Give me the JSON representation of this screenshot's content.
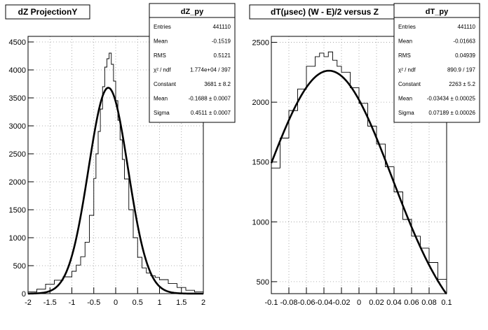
{
  "chart_data": [
    {
      "type": "line",
      "title": "dZ ProjectionY",
      "xlim": [
        -2,
        2
      ],
      "ylim": [
        0,
        4600
      ],
      "x_ticks": [
        "-2",
        "-1.5",
        "-1",
        "-0.5",
        "0",
        "0.5",
        "1",
        "1.5",
        "2"
      ],
      "x_tick_values": [
        -2,
        -1.5,
        -1,
        -0.5,
        0,
        0.5,
        1,
        1.5,
        2
      ],
      "y_ticks": [
        "0",
        "500",
        "1000",
        "1500",
        "2000",
        "2500",
        "3000",
        "3500",
        "4000",
        "4500"
      ],
      "y_tick_values": [
        0,
        500,
        1000,
        1500,
        2000,
        2500,
        3000,
        3500,
        4000,
        4500
      ],
      "grid": true,
      "histogram": {
        "x": [
          -2.0,
          -1.8,
          -1.6,
          -1.4,
          -1.2,
          -1.0,
          -0.9,
          -0.8,
          -0.7,
          -0.6,
          -0.5,
          -0.45,
          -0.4,
          -0.35,
          -0.3,
          -0.25,
          -0.2,
          -0.15,
          -0.1,
          -0.05,
          0.0,
          0.05,
          0.1,
          0.15,
          0.2,
          0.3,
          0.4,
          0.5,
          0.6,
          0.7,
          0.8,
          0.9,
          1.0,
          1.2,
          1.4,
          1.6,
          1.8,
          2.0
        ],
        "y": [
          30,
          80,
          170,
          240,
          300,
          400,
          510,
          660,
          920,
          1400,
          2060,
          2500,
          2900,
          3300,
          3700,
          4050,
          4200,
          4300,
          4100,
          3800,
          3450,
          3100,
          2750,
          2400,
          2050,
          1500,
          1000,
          650,
          460,
          370,
          320,
          290,
          250,
          180,
          110,
          60,
          30,
          20
        ]
      },
      "fit": {
        "function": "gaussian",
        "constant": 3681,
        "mean": -0.1688,
        "sigma": 0.4511
      },
      "stats": {
        "name": "dZ_py",
        "rows": [
          {
            "label": "Entries",
            "value": "441110"
          },
          {
            "label": "Mean",
            "value": "-0.1519"
          },
          {
            "label": "RMS",
            "value": "0.5121"
          },
          {
            "label": "χ² / ndf",
            "value": "1.774e+04 / 397"
          },
          {
            "label": "Constant",
            "value": "3681 ± 8.2"
          },
          {
            "label": "Mean",
            "value": "-0.1688 ± 0.0007"
          },
          {
            "label": "Sigma",
            "value": "0.4511 ± 0.0007"
          }
        ]
      }
    },
    {
      "type": "line",
      "title": "dT(μsec) (W - E)/2 versus Z",
      "xlim": [
        -0.1,
        0.1
      ],
      "ylim": [
        400,
        2550
      ],
      "x_ticks": [
        "-0.1",
        "-0.08",
        "-0.06",
        "-0.04",
        "-0.02",
        "0",
        "0.02",
        "0.04",
        "0.06",
        "0.08",
        "0.1"
      ],
      "x_tick_values": [
        -0.1,
        -0.08,
        -0.06,
        -0.04,
        -0.02,
        0,
        0.02,
        0.04,
        0.06,
        0.08,
        0.1
      ],
      "y_ticks": [
        "500",
        "1000",
        "1500",
        "2000",
        "2500"
      ],
      "y_tick_values": [
        500,
        1000,
        1500,
        2000,
        2500
      ],
      "grid": true,
      "histogram": {
        "x": [
          -0.1,
          -0.09,
          -0.08,
          -0.07,
          -0.06,
          -0.05,
          -0.045,
          -0.04,
          -0.035,
          -0.03,
          -0.025,
          -0.02,
          -0.01,
          0.0,
          0.01,
          0.02,
          0.03,
          0.04,
          0.05,
          0.06,
          0.07,
          0.08,
          0.09,
          0.1
        ],
        "y": [
          1450,
          1700,
          1930,
          2110,
          2300,
          2380,
          2410,
          2380,
          2420,
          2350,
          2300,
          2250,
          2120,
          1990,
          1800,
          1650,
          1460,
          1250,
          1020,
          880,
          780,
          660,
          520,
          420
        ]
      },
      "fit": {
        "function": "gaussian",
        "constant": 2263,
        "mean": -0.03434,
        "sigma": 0.07189
      },
      "stats": {
        "name": "dT_py",
        "rows": [
          {
            "label": "Entries",
            "value": "441110"
          },
          {
            "label": "Mean",
            "value": "-0.01663"
          },
          {
            "label": "RMS",
            "value": "0.04939"
          },
          {
            "label": "χ² / ndf",
            "value": "890.9 / 197"
          },
          {
            "label": "Constant",
            "value": "2263 ± 5.2"
          },
          {
            "label": "Mean",
            "value": "-0.03434 ± 0.00025"
          },
          {
            "label": "Sigma",
            "value": "0.07189 ± 0.00026"
          }
        ]
      }
    }
  ]
}
